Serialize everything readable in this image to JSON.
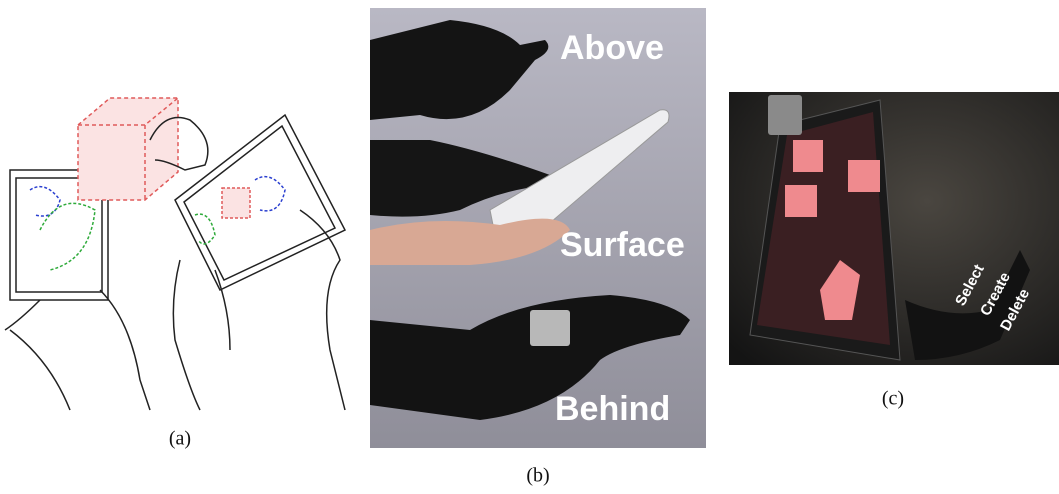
{
  "panels": [
    {
      "label": "(a)"
    },
    {
      "label": "(b)",
      "overlay_labels": [
        "Above",
        "Surface",
        "Behind"
      ]
    },
    {
      "label": "(c)",
      "overlay_labels": [
        "Select",
        "Create",
        "Delete"
      ]
    }
  ]
}
